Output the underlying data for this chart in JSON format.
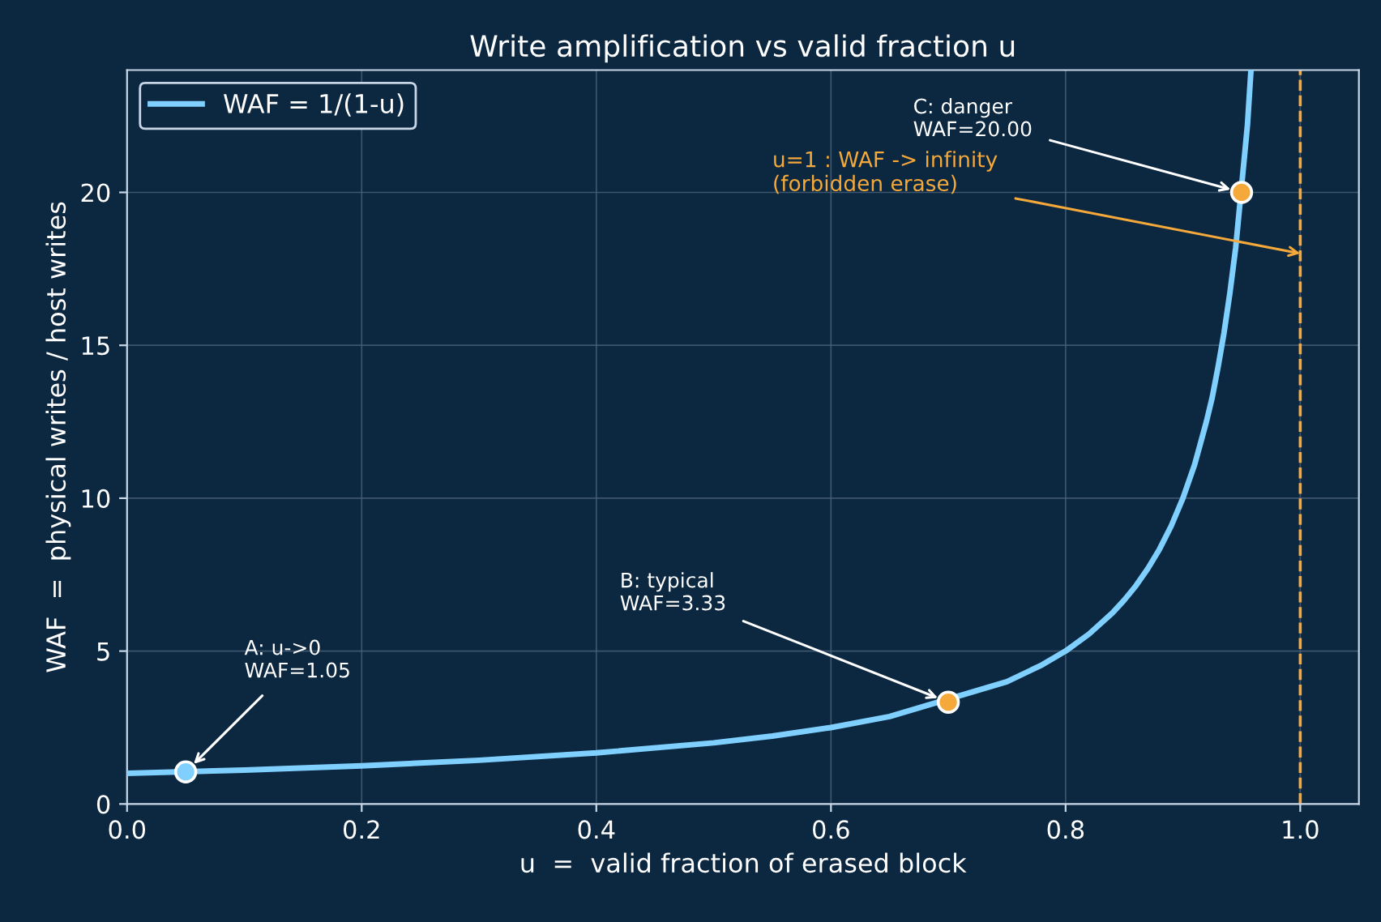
{
  "chart_data": {
    "type": "line",
    "title": "Write amplification vs valid fraction u",
    "xlabel": "u  =  valid fraction of erased block",
    "ylabel": "WAF  =  physical writes / host writes",
    "series": [
      {
        "name": "WAF = 1/(1-u)",
        "color": "#7fd0ff",
        "x": [
          0,
          0.1,
          0.2,
          0.3,
          0.4,
          0.5,
          0.55,
          0.6,
          0.65,
          0.75,
          0.78,
          0.8,
          0.82,
          0.84,
          0.85,
          0.86,
          0.87,
          0.88,
          0.89,
          0.9,
          0.91,
          0.915,
          0.92,
          0.925,
          0.93,
          0.935,
          0.94,
          0.945,
          0.955,
          0.958
        ],
        "values": [
          1,
          1.11,
          1.25,
          1.43,
          1.67,
          2,
          2.22,
          2.5,
          2.86,
          4,
          4.55,
          5,
          5.56,
          6.25,
          6.67,
          7.14,
          7.69,
          8.33,
          9.09,
          10,
          11.1,
          11.8,
          12.5,
          13.3,
          14.3,
          15.4,
          16.7,
          18.2,
          22.2,
          24
        ]
      },
      {
        "type": "scatter",
        "marker": "circle",
        "x": [
          0.05,
          0.7,
          0.95
        ],
        "values": [
          1.05,
          3.33,
          20
        ],
        "colors": [
          "#7fd0ff",
          "#f5a93a",
          "#f5a93a"
        ]
      }
    ],
    "xlim": [
      0,
      1.05
    ],
    "xticks": [
      {
        "value": 0,
        "label": "0.0"
      },
      0.2,
      0.4,
      0.6,
      0.8,
      {
        "value": 1,
        "label": "1.0"
      }
    ],
    "ylim": [
      0,
      24
    ],
    "yticks": [
      0,
      5,
      10,
      15,
      20
    ],
    "ref_lines": [
      {
        "axis": "x",
        "value": 1,
        "color": "#f5a93a",
        "line_style": "dashed"
      }
    ],
    "annotations": [
      {
        "text": "A: u->0\nWAF=1.05",
        "x": 0.05,
        "y": 1.05
      },
      {
        "text": "B: typical\nWAF=3.33",
        "x": 0.7,
        "y": 3.33
      },
      {
        "text": "C: danger\nWAF=20.00",
        "x": 0.95,
        "y": 20
      },
      {
        "text": "u=1 : WAF -> infinity\n(forbidden erase)",
        "x": 1,
        "y": 18
      }
    ],
    "grid": true,
    "legend": "top left"
  }
}
